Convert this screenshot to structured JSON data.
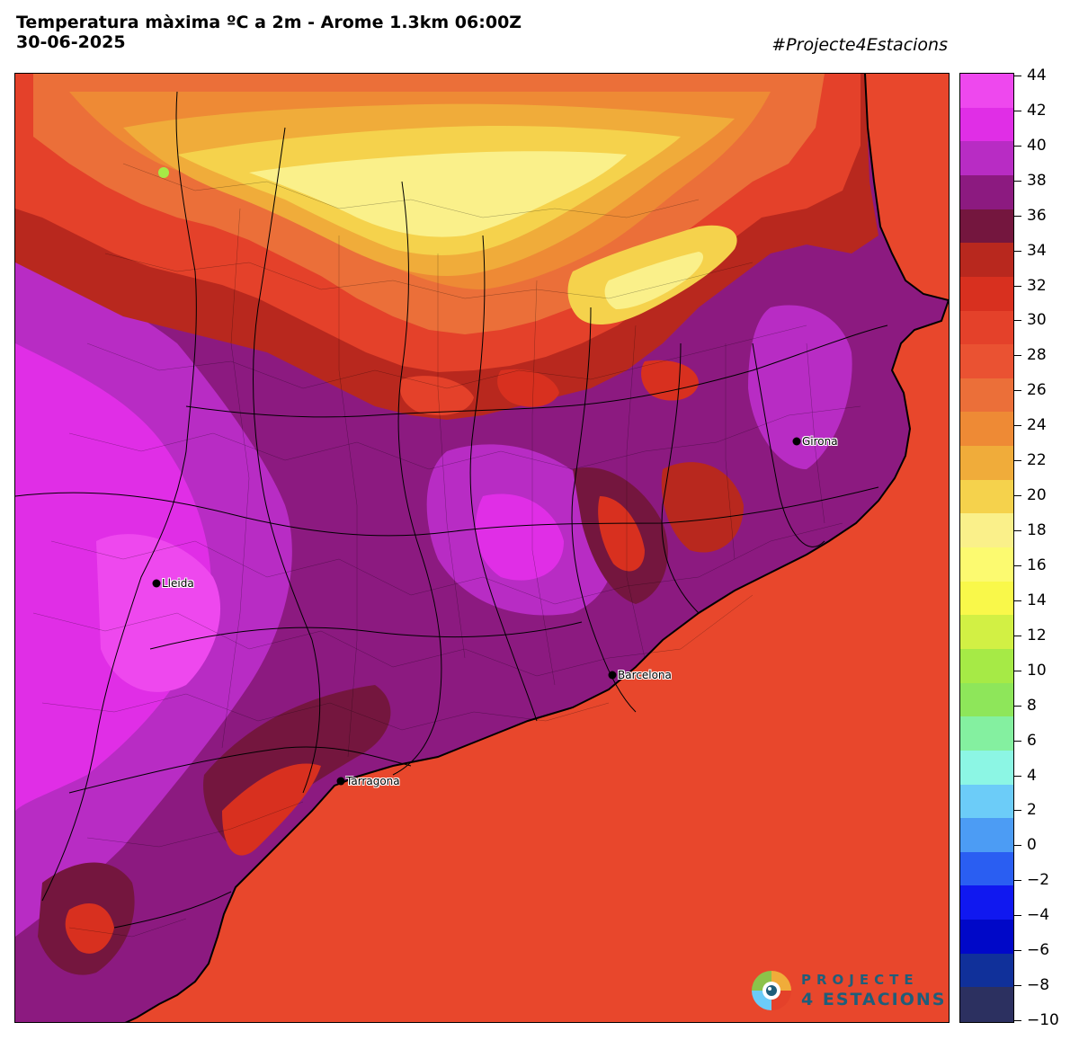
{
  "header": {
    "title_line1": "Temperatura màxima ºC a 2m - Arome 1.3km 06:00Z",
    "title_line2": "30-06-2025",
    "hashtag": "#Projecte4Estacions"
  },
  "colorbar": {
    "min": -10,
    "max": 44,
    "step": 2,
    "tick_labels": [
      "44",
      "42",
      "40",
      "38",
      "36",
      "34",
      "32",
      "30",
      "28",
      "26",
      "24",
      "22",
      "20",
      "18",
      "16",
      "14",
      "12",
      "10",
      "8",
      "6",
      "4",
      "2",
      "0",
      "−2",
      "−4",
      "−6",
      "−8",
      "−10"
    ],
    "colors": [
      "#ee48ee",
      "#e02ee6",
      "#b82cc4",
      "#8c1a80",
      "#74163e",
      "#b8281e",
      "#d8301f",
      "#e4412a",
      "#ea5232",
      "#eb6f39",
      "#ee8a35",
      "#f0ac3a",
      "#f5d24c",
      "#faf08a",
      "#fcfa70",
      "#f9f84a",
      "#d2f044",
      "#a6ea46",
      "#8ee65a",
      "#84f0a0",
      "#8cf6e4",
      "#6cccf8",
      "#4c9cf4",
      "#2a5ef2",
      "#1018f0",
      "#0008c8",
      "#10309a",
      "#2c3060"
    ]
  },
  "map": {
    "sea_color": "#e8472c",
    "cities": [
      {
        "name": "Lleida",
        "lon": 0.62,
        "lat": 41.62
      },
      {
        "name": "Girona",
        "lon": 2.82,
        "lat": 41.98
      },
      {
        "name": "Barcelona",
        "lon": 2.17,
        "lat": 41.39
      },
      {
        "name": "Tarragona",
        "lon": 1.25,
        "lat": 41.12
      }
    ]
  },
  "logo": {
    "line1": "PROJECTE",
    "line2": "4 ESTACIONS",
    "icon": "projecte4estacions-logo-icon"
  }
}
